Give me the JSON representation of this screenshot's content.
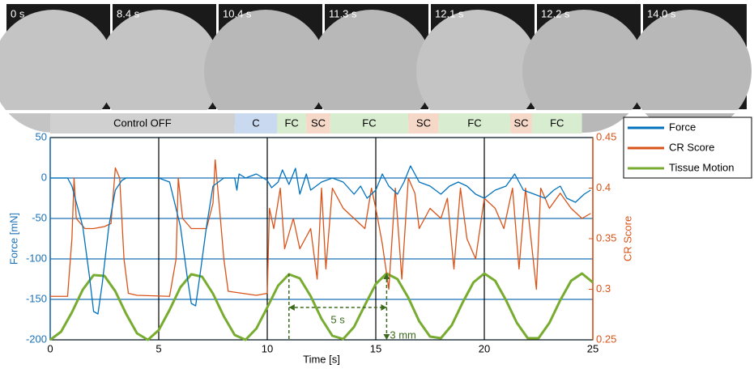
{
  "snapshots": [
    "0 s",
    "8.4 s",
    "10.4 s",
    "11.3 s",
    "12.1 s",
    "12.2 s",
    "14.0 s"
  ],
  "chart_data": {
    "type": "line",
    "xlabel": "Time [s]",
    "ylabel": "Force [mN]",
    "y2label": "CR Score",
    "xlim": [
      0,
      25
    ],
    "xticks": [
      0,
      5,
      10,
      15,
      20,
      25
    ],
    "ylim": [
      -200,
      50
    ],
    "yticks": [
      -200,
      -150,
      -100,
      -50,
      0,
      50
    ],
    "y2lim": [
      0.25,
      0.45
    ],
    "y2ticks": [
      0.25,
      0.3,
      0.35,
      0.4,
      0.45
    ],
    "grid": true,
    "legend": "top-right",
    "phases": [
      {
        "label": "Control OFF",
        "start": 0,
        "end": 8.5,
        "color": "#d0d0d0"
      },
      {
        "label": "C",
        "start": 8.5,
        "end": 10.45,
        "color": "#c9d9ef"
      },
      {
        "label": "FC",
        "start": 10.45,
        "end": 11.8,
        "color": "#d8ecd0"
      },
      {
        "label": "SC",
        "start": 11.8,
        "end": 12.9,
        "color": "#f6d8c8"
      },
      {
        "label": "FC",
        "start": 12.9,
        "end": 16.5,
        "color": "#d8ecd0"
      },
      {
        "label": "SC",
        "start": 16.5,
        "end": 17.9,
        "color": "#f6d8c8"
      },
      {
        "label": "FC",
        "start": 17.9,
        "end": 21.2,
        "color": "#d8ecd0"
      },
      {
        "label": "SC",
        "start": 21.2,
        "end": 22.2,
        "color": "#f6d8c8"
      },
      {
        "label": "FC",
        "start": 22.2,
        "end": 24.5,
        "color": "#d8ecd0"
      }
    ],
    "annotations": [
      "5 s",
      "3 mm"
    ],
    "series": [
      {
        "name": "Force",
        "color": "#0072bd",
        "axis": "y",
        "x": [
          0,
          0.8,
          1.0,
          1.5,
          1.8,
          2.0,
          2.2,
          2.4,
          2.7,
          3.0,
          3.3,
          3.5,
          5.0,
          5.5,
          6.0,
          6.3,
          6.5,
          6.7,
          6.9,
          7.2,
          7.5,
          8.0,
          8.5,
          8.6,
          8.7,
          9.0,
          9.5,
          10,
          10.2,
          10.5,
          10.7,
          11,
          11.3,
          11.5,
          11.8,
          12,
          12.5,
          13,
          13.5,
          14,
          14.3,
          14.6,
          15,
          15.3,
          15.6,
          16,
          16.3,
          16.6,
          17,
          17.5,
          18,
          18.4,
          18.8,
          19.2,
          19.6,
          20,
          20.5,
          21,
          21.4,
          21.8,
          22.3,
          22.8,
          23.2,
          23.5,
          23.8,
          24.2,
          24.6,
          24.9
        ],
        "values": [
          0,
          0,
          -10,
          -60,
          -120,
          -165,
          -168,
          -130,
          -60,
          -15,
          -3,
          0,
          0,
          -5,
          -60,
          -120,
          -155,
          -158,
          -120,
          -60,
          -10,
          0,
          0,
          -15,
          5,
          0,
          5,
          -3,
          -12,
          -5,
          10,
          -8,
          12,
          -20,
          5,
          -15,
          -5,
          0,
          -5,
          -20,
          -10,
          -25,
          -15,
          5,
          -10,
          -20,
          -5,
          15,
          -5,
          -10,
          -20,
          -10,
          -5,
          -10,
          -20,
          -25,
          -15,
          -10,
          5,
          -15,
          -20,
          -25,
          -15,
          -10,
          -25,
          -30,
          -20,
          -15
        ]
      },
      {
        "name": "CR Score",
        "color": "#d95319",
        "axis": "y2",
        "x": [
          0,
          0.8,
          1.0,
          1.1,
          1.2,
          1.6,
          2.0,
          2.5,
          2.8,
          3.0,
          3.2,
          3.4,
          3.6,
          4,
          5.5,
          5.8,
          5.9,
          6.1,
          6.5,
          7.2,
          7.5,
          7.6,
          7.8,
          8,
          8.2,
          9.5,
          10,
          10.1,
          10.3,
          10.6,
          10.8,
          11.2,
          11.5,
          12,
          12.3,
          12.5,
          12.7,
          13,
          13.5,
          14,
          14.5,
          14.8,
          15,
          15.3,
          15.6,
          15.9,
          16.2,
          16.5,
          16.8,
          17,
          17.5,
          18,
          18.3,
          18.6,
          18.9,
          19.2,
          19.6,
          20,
          20.5,
          20.9,
          21.3,
          21.6,
          21.9,
          22.4,
          22.6,
          23,
          23.5,
          24,
          24.5,
          24.9
        ],
        "values": [
          0.293,
          0.293,
          0.35,
          0.41,
          0.37,
          0.36,
          0.36,
          0.362,
          0.365,
          0.42,
          0.41,
          0.33,
          0.296,
          0.294,
          0.293,
          0.33,
          0.41,
          0.37,
          0.36,
          0.36,
          0.385,
          0.428,
          0.38,
          0.33,
          0.298,
          0.294,
          0.296,
          0.38,
          0.36,
          0.4,
          0.34,
          0.37,
          0.34,
          0.36,
          0.31,
          0.4,
          0.32,
          0.4,
          0.38,
          0.37,
          0.36,
          0.4,
          0.38,
          0.345,
          0.3,
          0.4,
          0.31,
          0.41,
          0.395,
          0.36,
          0.38,
          0.37,
          0.39,
          0.32,
          0.4,
          0.35,
          0.33,
          0.39,
          0.38,
          0.36,
          0.4,
          0.32,
          0.4,
          0.3,
          0.4,
          0.38,
          0.395,
          0.38,
          0.37,
          0.375
        ]
      },
      {
        "name": "Tissue Motion",
        "color": "#77ac30",
        "axis": "y",
        "x": [
          0,
          0.5,
          1,
          1.5,
          2,
          2.5,
          3,
          3.5,
          4,
          4.5,
          5,
          5.5,
          6,
          6.5,
          7,
          7.5,
          8,
          8.5,
          9,
          9.5,
          10,
          10.5,
          11,
          11.5,
          12,
          12.5,
          13,
          13.5,
          14,
          14.5,
          15,
          15.5,
          16,
          16.5,
          17,
          17.5,
          18,
          18.5,
          19,
          19.5,
          20,
          20.5,
          21,
          21.5,
          22,
          22.5,
          23,
          23.5,
          24,
          24.5,
          25
        ],
        "values": [
          -200,
          -190,
          -166,
          -138,
          -120,
          -121,
          -140,
          -168,
          -192,
          -200,
          -188,
          -163,
          -135,
          -119,
          -122,
          -143,
          -171,
          -194,
          -200,
          -186,
          -160,
          -133,
          -119,
          -124,
          -146,
          -174,
          -195,
          -199,
          -184,
          -157,
          -131,
          -118,
          -125,
          -148,
          -177,
          -196,
          -198,
          -182,
          -154,
          -129,
          -118,
          -127,
          -151,
          -179,
          -198,
          -198,
          -179,
          -151,
          -127,
          -118,
          -129
        ]
      }
    ]
  }
}
